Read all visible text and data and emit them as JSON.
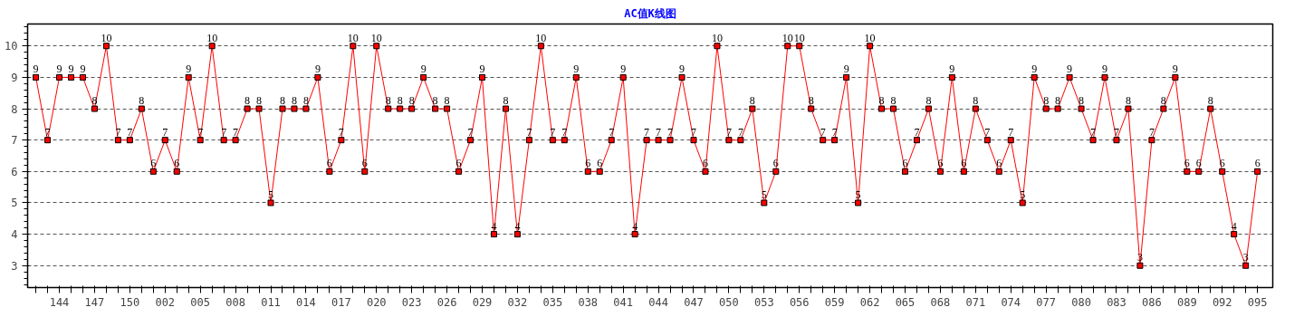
{
  "chart_data": {
    "type": "line",
    "title": "AC值K线图",
    "categories": [
      null,
      null,
      "144",
      null,
      null,
      "147",
      null,
      null,
      "150",
      null,
      null,
      "002",
      null,
      null,
      "005",
      null,
      null,
      "008",
      null,
      null,
      "011",
      null,
      null,
      "014",
      null,
      null,
      "017",
      null,
      null,
      "020",
      null,
      null,
      "023",
      null,
      null,
      "026",
      null,
      null,
      "029",
      null,
      null,
      "032",
      null,
      null,
      "035",
      null,
      null,
      "038",
      null,
      null,
      "041",
      null,
      null,
      "044",
      null,
      null,
      "047",
      null,
      null,
      "050",
      null,
      null,
      "053",
      null,
      null,
      "056",
      null,
      null,
      "059",
      null,
      null,
      "062",
      null,
      null,
      "065",
      null,
      null,
      "068",
      null,
      null,
      "071",
      null,
      null,
      "074",
      null,
      null,
      "077",
      null,
      null,
      "080",
      null,
      null,
      "083",
      null,
      null,
      "086",
      null,
      null,
      "089",
      null,
      null,
      "092",
      null,
      null,
      "095"
    ],
    "series": [
      {
        "color": "#ff0000",
        "values": [
          9,
          7,
          9,
          9,
          9,
          8,
          10,
          7,
          7,
          8,
          6,
          7,
          6,
          9,
          7,
          10,
          7,
          7,
          8,
          8,
          5,
          8,
          8,
          8,
          9,
          6,
          7,
          10,
          6,
          10,
          8,
          8,
          8,
          9,
          8,
          8,
          6,
          7,
          9,
          4,
          8,
          4,
          7,
          10,
          7,
          7,
          9,
          6,
          6,
          7,
          9,
          4,
          7,
          7,
          7,
          9,
          7,
          6,
          10,
          7,
          7,
          8,
          5,
          6,
          10,
          10,
          8,
          7,
          7,
          9,
          5,
          10,
          8,
          8,
          6,
          7,
          8,
          6,
          9,
          6,
          8,
          7,
          6,
          7,
          5,
          9,
          8,
          8,
          9,
          8,
          7,
          9,
          7,
          8,
          3,
          7,
          8,
          9,
          6,
          6,
          8,
          6,
          4,
          3,
          6
        ]
      }
    ],
    "ylim": [
      2.3,
      10.7
    ],
    "yticks": [
      3,
      4,
      5,
      6,
      7,
      8,
      9,
      10
    ],
    "grid": "y",
    "marker": "square",
    "line_style": "solid",
    "data_labels": true
  }
}
